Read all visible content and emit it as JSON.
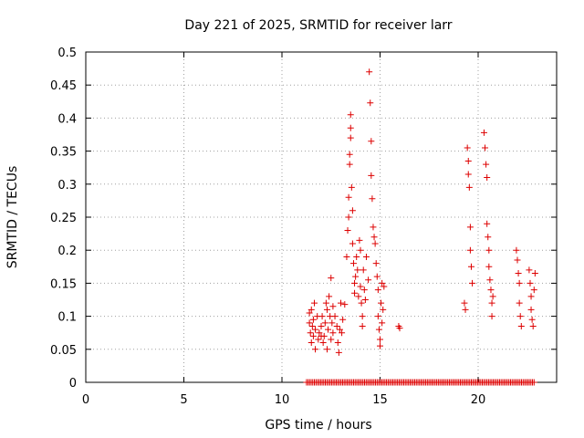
{
  "chart_data": {
    "type": "scatter",
    "title": "Day 221 of 2025, SRMTID for receiver larr",
    "xlabel": "GPS time / hours",
    "ylabel": "SRMTID / TECUs",
    "xlim": [
      0,
      24
    ],
    "ylim": [
      0,
      0.5
    ],
    "grid": true,
    "marker": "+",
    "color": "#dd0000",
    "x_ticks": [
      0,
      5,
      10,
      15,
      20
    ],
    "x_tick_labels": [
      "0",
      "5",
      "10",
      "15",
      "20"
    ],
    "y_ticks": [
      0,
      0.05,
      0.1,
      0.15,
      0.2,
      0.25,
      0.3,
      0.35,
      0.4,
      0.45,
      0.5
    ],
    "y_tick_labels": [
      "0",
      "0.05",
      "0.1",
      "0.15",
      "0.2",
      "0.25",
      "0.3",
      "0.35",
      "0.4",
      "0.45",
      "0.5"
    ],
    "series": [
      {
        "name": "SRMTID",
        "points": [
          [
            11.4,
            0.105
          ],
          [
            11.4,
            0.09
          ],
          [
            11.45,
            0.075
          ],
          [
            11.5,
            0.06
          ],
          [
            11.5,
            0.11
          ],
          [
            11.55,
            0.085
          ],
          [
            11.6,
            0.07
          ],
          [
            11.6,
            0.095
          ],
          [
            11.65,
            0.12
          ],
          [
            11.7,
            0.08
          ],
          [
            11.7,
            0.05
          ],
          [
            11.8,
            0.1
          ],
          [
            11.85,
            0.065
          ],
          [
            11.9,
            0.075
          ],
          [
            12.0,
            0.085
          ],
          [
            12.0,
            0.07
          ],
          [
            12.05,
            0.1
          ],
          [
            12.1,
            0.06
          ],
          [
            12.15,
            0.07
          ],
          [
            12.2,
            0.09
          ],
          [
            12.25,
            0.12
          ],
          [
            12.3,
            0.11
          ],
          [
            12.3,
            0.05
          ],
          [
            12.35,
            0.08
          ],
          [
            12.4,
            0.13
          ],
          [
            12.45,
            0.1
          ],
          [
            12.5,
            0.065
          ],
          [
            12.5,
            0.158
          ],
          [
            12.55,
            0.09
          ],
          [
            12.6,
            0.075
          ],
          [
            12.6,
            0.115
          ],
          [
            12.7,
            0.1
          ],
          [
            12.8,
            0.085
          ],
          [
            12.85,
            0.06
          ],
          [
            12.9,
            0.045
          ],
          [
            12.95,
            0.08
          ],
          [
            13.0,
            0.12
          ],
          [
            13.05,
            0.075
          ],
          [
            13.1,
            0.095
          ],
          [
            13.2,
            0.118
          ],
          [
            13.3,
            0.19
          ],
          [
            13.35,
            0.23
          ],
          [
            13.4,
            0.25
          ],
          [
            13.4,
            0.28
          ],
          [
            13.45,
            0.33
          ],
          [
            13.45,
            0.345
          ],
          [
            13.5,
            0.385
          ],
          [
            13.5,
            0.405
          ],
          [
            13.5,
            0.37
          ],
          [
            13.55,
            0.295
          ],
          [
            13.6,
            0.26
          ],
          [
            13.6,
            0.21
          ],
          [
            13.65,
            0.18
          ],
          [
            13.7,
            0.15
          ],
          [
            13.7,
            0.135
          ],
          [
            13.75,
            0.16
          ],
          [
            13.8,
            0.19
          ],
          [
            13.85,
            0.17
          ],
          [
            13.9,
            0.13
          ],
          [
            13.95,
            0.215
          ],
          [
            14.0,
            0.2
          ],
          [
            14.0,
            0.145
          ],
          [
            14.05,
            0.12
          ],
          [
            14.1,
            0.1
          ],
          [
            14.1,
            0.085
          ],
          [
            14.15,
            0.17
          ],
          [
            14.2,
            0.14
          ],
          [
            14.25,
            0.125
          ],
          [
            14.3,
            0.19
          ],
          [
            14.4,
            0.155
          ],
          [
            14.45,
            0.47
          ],
          [
            14.5,
            0.423
          ],
          [
            14.55,
            0.365
          ],
          [
            14.55,
            0.313
          ],
          [
            14.6,
            0.278
          ],
          [
            14.65,
            0.235
          ],
          [
            14.7,
            0.22
          ],
          [
            14.75,
            0.21
          ],
          [
            14.8,
            0.18
          ],
          [
            14.85,
            0.16
          ],
          [
            14.9,
            0.14
          ],
          [
            14.9,
            0.1
          ],
          [
            14.95,
            0.08
          ],
          [
            15.0,
            0.065
          ],
          [
            15.0,
            0.055
          ],
          [
            15.05,
            0.12
          ],
          [
            15.1,
            0.15
          ],
          [
            15.1,
            0.09
          ],
          [
            15.15,
            0.11
          ],
          [
            15.2,
            0.145
          ],
          [
            15.95,
            0.085
          ],
          [
            16.0,
            0.082
          ],
          [
            19.3,
            0.12
          ],
          [
            19.35,
            0.11
          ],
          [
            19.45,
            0.355
          ],
          [
            19.5,
            0.335
          ],
          [
            19.5,
            0.315
          ],
          [
            19.55,
            0.295
          ],
          [
            19.6,
            0.235
          ],
          [
            19.6,
            0.2
          ],
          [
            19.65,
            0.175
          ],
          [
            19.7,
            0.15
          ],
          [
            20.3,
            0.378
          ],
          [
            20.35,
            0.355
          ],
          [
            20.4,
            0.33
          ],
          [
            20.45,
            0.31
          ],
          [
            20.45,
            0.24
          ],
          [
            20.5,
            0.22
          ],
          [
            20.55,
            0.2
          ],
          [
            20.55,
            0.175
          ],
          [
            20.6,
            0.155
          ],
          [
            20.65,
            0.14
          ],
          [
            20.7,
            0.12
          ],
          [
            20.7,
            0.1
          ],
          [
            20.75,
            0.13
          ],
          [
            21.95,
            0.2
          ],
          [
            22.0,
            0.185
          ],
          [
            22.05,
            0.165
          ],
          [
            22.1,
            0.15
          ],
          [
            22.1,
            0.12
          ],
          [
            22.15,
            0.1
          ],
          [
            22.2,
            0.085
          ],
          [
            22.6,
            0.17
          ],
          [
            22.65,
            0.15
          ],
          [
            22.7,
            0.13
          ],
          [
            22.7,
            0.11
          ],
          [
            22.75,
            0.095
          ],
          [
            22.8,
            0.085
          ],
          [
            22.85,
            0.14
          ],
          [
            22.9,
            0.165
          ]
        ],
        "zero_band": {
          "x_start": 11.25,
          "x_end": 22.9,
          "y": 0
        }
      }
    ]
  }
}
